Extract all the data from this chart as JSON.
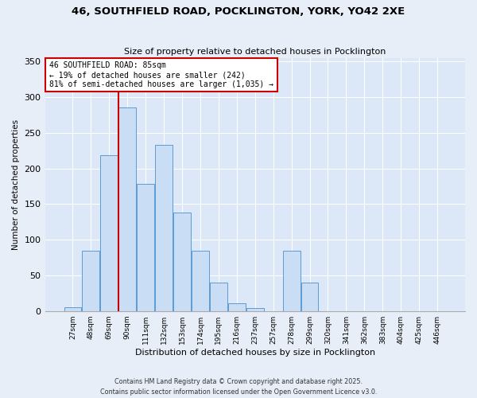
{
  "title": "46, SOUTHFIELD ROAD, POCKLINGTON, YORK, YO42 2XE",
  "subtitle": "Size of property relative to detached houses in Pocklington",
  "xlabel": "Distribution of detached houses by size in Pocklington",
  "ylabel": "Number of detached properties",
  "bar_labels": [
    "27sqm",
    "48sqm",
    "69sqm",
    "90sqm",
    "111sqm",
    "132sqm",
    "153sqm",
    "174sqm",
    "195sqm",
    "216sqm",
    "237sqm",
    "257sqm",
    "278sqm",
    "299sqm",
    "320sqm",
    "341sqm",
    "362sqm",
    "383sqm",
    "404sqm",
    "425sqm",
    "446sqm"
  ],
  "bar_values": [
    5,
    85,
    218,
    285,
    178,
    233,
    138,
    85,
    40,
    11,
    4,
    0,
    85,
    40,
    0,
    0,
    0,
    0,
    0,
    0,
    0
  ],
  "bar_color": "#c9ddf5",
  "bar_edge_color": "#5b9bd5",
  "vline_x_index": 3,
  "annotation_title": "46 SOUTHFIELD ROAD: 85sqm",
  "annotation_line2": "← 19% of detached houses are smaller (242)",
  "annotation_line3": "81% of semi-detached houses are larger (1,035) →",
  "annotation_box_color": "#ffffff",
  "annotation_box_edge": "#cc0000",
  "vline_color": "#cc0000",
  "yticks": [
    0,
    50,
    100,
    150,
    200,
    250,
    300,
    350
  ],
  "ylim": [
    0,
    355
  ],
  "footer1": "Contains HM Land Registry data © Crown copyright and database right 2025.",
  "footer2": "Contains public sector information licensed under the Open Government Licence v3.0.",
  "bg_color": "#e8eef8",
  "plot_bg_color": "#dce7f7",
  "grid_color": "#ffffff"
}
